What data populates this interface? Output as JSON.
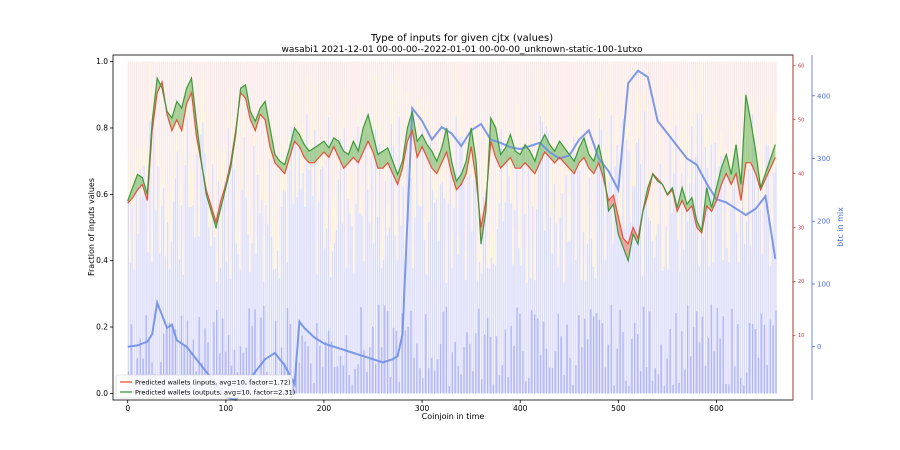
{
  "chart_data": {
    "type": "line",
    "title": "Type of inputs for given cjtx (values)",
    "subtitle": "wasabi1 2021-12-01 00-00-00--2022-01-01 00-00-00_unknown-static-100-1utxo",
    "xlabel": "Coinjoin in time",
    "ylabel": "Fraction of inputs values",
    "y2label": "btc in mix",
    "xlim": [
      -15,
      678
    ],
    "ylim": [
      -0.02,
      1.02
    ],
    "y2lim": [
      -85,
      465
    ],
    "y3lim": [
      -2,
      62
    ],
    "xticks": [
      0,
      100,
      200,
      300,
      400,
      500,
      600
    ],
    "yticks": [
      0.0,
      0.2,
      0.4,
      0.6,
      0.8,
      1.0
    ],
    "y2ticks": [
      0,
      100,
      200,
      300,
      400
    ],
    "y3ticks": [
      10,
      20,
      30,
      40,
      50,
      60
    ],
    "grid": false,
    "legend_position": "lower-left",
    "colors": {
      "inputs": "#e8503a",
      "outputs": "#3a9a3a",
      "fill_green": "#7cbf6a",
      "fill_red": "#f08070",
      "btc": "#6f8fe4",
      "btc_axis": "#4a6fd4",
      "red_axis": "#d03030",
      "bar_blue": "#b8bcf8",
      "bar_pink": "#f8d4d0",
      "bar_yellow": "#fbe8c0"
    },
    "series": [
      {
        "name": "Predicted wallets (inputs, avg=10, factor=1.72)",
        "axis": "right-red",
        "x": [
          0,
          5,
          10,
          15,
          20,
          25,
          30,
          35,
          40,
          45,
          50,
          55,
          60,
          65,
          70,
          75,
          80,
          85,
          90,
          95,
          100,
          105,
          110,
          115,
          120,
          125,
          130,
          135,
          140,
          145,
          150,
          155,
          160,
          165,
          170,
          175,
          180,
          185,
          190,
          195,
          200,
          205,
          210,
          215,
          220,
          225,
          230,
          235,
          240,
          245,
          250,
          255,
          260,
          265,
          270,
          275,
          280,
          285,
          290,
          295,
          300,
          305,
          310,
          315,
          320,
          325,
          330,
          335,
          340,
          345,
          350,
          355,
          360,
          365,
          370,
          375,
          380,
          385,
          390,
          395,
          400,
          405,
          410,
          415,
          420,
          425,
          430,
          435,
          440,
          445,
          450,
          455,
          460,
          465,
          470,
          475,
          480,
          485,
          490,
          495,
          500,
          505,
          510,
          515,
          520,
          525,
          530,
          535,
          540,
          545,
          550,
          555,
          560,
          565,
          570,
          575,
          580,
          585,
          590,
          595,
          600,
          605,
          610,
          615,
          620,
          625,
          630,
          635,
          640,
          645,
          660
        ],
        "y": [
          34.5,
          35.5,
          37,
          38,
          35,
          48,
          55,
          57,
          51,
          48,
          50,
          48,
          53,
          55,
          47,
          42,
          37,
          34,
          31,
          35,
          38,
          42,
          48,
          55,
          54,
          50,
          48,
          51,
          50,
          45,
          42,
          41,
          40,
          43,
          46,
          45,
          43,
          42,
          42,
          43,
          44,
          43,
          45,
          43,
          41,
          42,
          43,
          42,
          44,
          46,
          44,
          41,
          41,
          42,
          40,
          38,
          41,
          46,
          48,
          43,
          45,
          43,
          41,
          40,
          42,
          44,
          40,
          37,
          38,
          40,
          45,
          39,
          30,
          35,
          46,
          43,
          41,
          42,
          43,
          41,
          41,
          42,
          41,
          40,
          42,
          44,
          43,
          42,
          43,
          42,
          41,
          40,
          42,
          43,
          41,
          40,
          42,
          39,
          35,
          36,
          32,
          28,
          27,
          30,
          28,
          33,
          36,
          40,
          39,
          38,
          36,
          37,
          33,
          35,
          33,
          34,
          30,
          29,
          34,
          33,
          35,
          38,
          40,
          38,
          40,
          35,
          42,
          42,
          40,
          37,
          43
        ]
      },
      {
        "name": "Predicted wallets (outputs, avg=10, factor=2.31)",
        "axis": "left",
        "x": [
          0,
          5,
          10,
          15,
          20,
          25,
          30,
          35,
          40,
          45,
          50,
          55,
          60,
          65,
          70,
          75,
          80,
          85,
          90,
          95,
          100,
          105,
          110,
          115,
          120,
          125,
          130,
          135,
          140,
          145,
          150,
          155,
          160,
          165,
          170,
          175,
          180,
          185,
          190,
          195,
          200,
          205,
          210,
          215,
          220,
          225,
          230,
          235,
          240,
          245,
          250,
          255,
          260,
          265,
          270,
          275,
          280,
          285,
          290,
          295,
          300,
          305,
          310,
          315,
          320,
          325,
          330,
          335,
          340,
          345,
          350,
          355,
          360,
          365,
          370,
          375,
          380,
          385,
          390,
          395,
          400,
          405,
          410,
          415,
          420,
          425,
          430,
          435,
          440,
          445,
          450,
          455,
          460,
          465,
          470,
          475,
          480,
          485,
          490,
          495,
          500,
          505,
          510,
          515,
          520,
          525,
          530,
          535,
          540,
          545,
          550,
          555,
          560,
          565,
          570,
          575,
          580,
          585,
          590,
          595,
          600,
          605,
          610,
          615,
          620,
          625,
          630,
          635,
          640,
          645,
          660
        ],
        "y": [
          0.58,
          0.62,
          0.66,
          0.65,
          0.6,
          0.82,
          0.95,
          0.92,
          0.85,
          0.83,
          0.88,
          0.86,
          0.92,
          0.95,
          0.82,
          0.7,
          0.6,
          0.55,
          0.5,
          0.56,
          0.62,
          0.68,
          0.78,
          0.92,
          0.93,
          0.85,
          0.82,
          0.86,
          0.88,
          0.8,
          0.72,
          0.7,
          0.69,
          0.74,
          0.8,
          0.78,
          0.75,
          0.73,
          0.74,
          0.75,
          0.76,
          0.74,
          0.77,
          0.76,
          0.73,
          0.72,
          0.76,
          0.73,
          0.8,
          0.84,
          0.78,
          0.72,
          0.73,
          0.74,
          0.7,
          0.66,
          0.7,
          0.8,
          0.85,
          0.76,
          0.78,
          0.75,
          0.73,
          0.7,
          0.74,
          0.8,
          0.7,
          0.64,
          0.66,
          0.7,
          0.8,
          0.7,
          0.45,
          0.55,
          0.83,
          0.8,
          0.72,
          0.74,
          0.78,
          0.73,
          0.72,
          0.75,
          0.73,
          0.7,
          0.75,
          0.78,
          0.75,
          0.73,
          0.76,
          0.74,
          0.72,
          0.7,
          0.74,
          0.77,
          0.72,
          0.7,
          0.75,
          0.68,
          0.55,
          0.57,
          0.48,
          0.44,
          0.4,
          0.48,
          0.45,
          0.55,
          0.62,
          0.66,
          0.64,
          0.63,
          0.6,
          0.62,
          0.56,
          0.62,
          0.57,
          0.59,
          0.52,
          0.49,
          0.62,
          0.56,
          0.62,
          0.68,
          0.72,
          0.66,
          0.75,
          0.63,
          0.9,
          0.82,
          0.73,
          0.62,
          0.75
        ]
      },
      {
        "name": "btc in mix",
        "axis": "right-blue",
        "x": [
          0,
          10,
          20,
          25,
          30,
          35,
          40,
          45,
          50,
          60,
          70,
          80,
          90,
          100,
          110,
          120,
          130,
          140,
          150,
          160,
          170,
          175,
          180,
          190,
          200,
          210,
          220,
          230,
          240,
          250,
          260,
          270,
          275,
          280,
          290,
          300,
          310,
          320,
          330,
          340,
          350,
          360,
          370,
          380,
          390,
          400,
          410,
          420,
          430,
          440,
          450,
          460,
          470,
          480,
          490,
          500,
          510,
          520,
          530,
          540,
          550,
          560,
          570,
          580,
          590,
          600,
          610,
          620,
          630,
          640,
          650,
          660
        ],
        "y": [
          0,
          2,
          8,
          20,
          70,
          50,
          30,
          35,
          10,
          0,
          -20,
          -40,
          -60,
          -80,
          -85,
          -60,
          -40,
          -20,
          -10,
          -30,
          -60,
          40,
          30,
          15,
          5,
          0,
          -5,
          -10,
          -15,
          -20,
          -25,
          -20,
          -15,
          20,
          380,
          360,
          330,
          350,
          340,
          320,
          345,
          355,
          330,
          325,
          318,
          315,
          320,
          325,
          310,
          300,
          305,
          330,
          345,
          300,
          280,
          250,
          420,
          440,
          430,
          360,
          340,
          320,
          300,
          290,
          260,
          235,
          230,
          220,
          210,
          220,
          240,
          140
        ]
      }
    ]
  }
}
